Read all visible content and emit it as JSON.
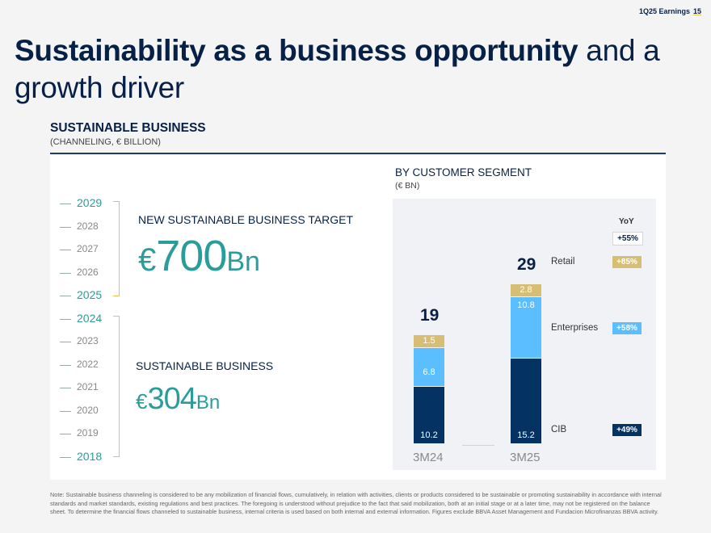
{
  "header": {
    "label": "1Q25 Earnings",
    "page": "15"
  },
  "title": {
    "bold": "Sustainability as a business opportunity",
    "rest": "and a growth driver"
  },
  "section": {
    "title": "SUSTAINABLE BUSINESS",
    "subtitle": "(CHANNELING, € BILLION)"
  },
  "timeline": {
    "years": [
      "2029",
      "2028",
      "2027",
      "2026",
      "2025",
      "2024",
      "2023",
      "2022",
      "2021",
      "2020",
      "2019",
      "2018"
    ]
  },
  "target": {
    "label": "NEW SUSTAINABLE BUSINESS TARGET",
    "currency": "€",
    "value": "700",
    "unit": "Bn"
  },
  "current": {
    "label": "SUSTAINABLE BUSINESS",
    "currency": "€",
    "value": "304",
    "unit": "Bn"
  },
  "segment": {
    "title": "BY CUSTOMER SEGMENT",
    "subtitle": "(€ BN)"
  },
  "chart_data": {
    "type": "bar",
    "stacked": true,
    "categories": [
      "3M24",
      "3M25"
    ],
    "totals": [
      "19",
      "29"
    ],
    "series": [
      {
        "name": "CIB",
        "values": [
          10.2,
          15.2
        ],
        "labels": [
          "10.2",
          "15.2"
        ],
        "color": "#043263",
        "yoy": "+49%"
      },
      {
        "name": "Enterprises",
        "values": [
          6.8,
          10.8
        ],
        "labels": [
          "6.8",
          "10.8"
        ],
        "color": "#5bbeff",
        "yoy": "+58%"
      },
      {
        "name": "Retail",
        "values": [
          1.5,
          2.8
        ],
        "labels": [
          "1.5",
          "2.8"
        ],
        "color": "#d8be75",
        "yoy": "+85%"
      }
    ],
    "yoy_header": "YoY",
    "yoy_total": "+55%"
  },
  "note": "Note: Sustainable business channeling is considered to be any mobilization of financial flows, cumulatively, in relation with activities, clients or products considered to be sustainable or promoting sustainability in accordance with internal standards and market standards, existing regulations and best practices. The foregoing is understood without prejudice to the fact that said mobilization, both at an initial stage or at a later time, may not be registered on the balance sheet. To determine the financial flows channeled to sustainable business, internal criteria is used based on both internal and external information. Figures exclude BBVA Asset Management and Fundacion Microfinanzas BBVA activity."
}
